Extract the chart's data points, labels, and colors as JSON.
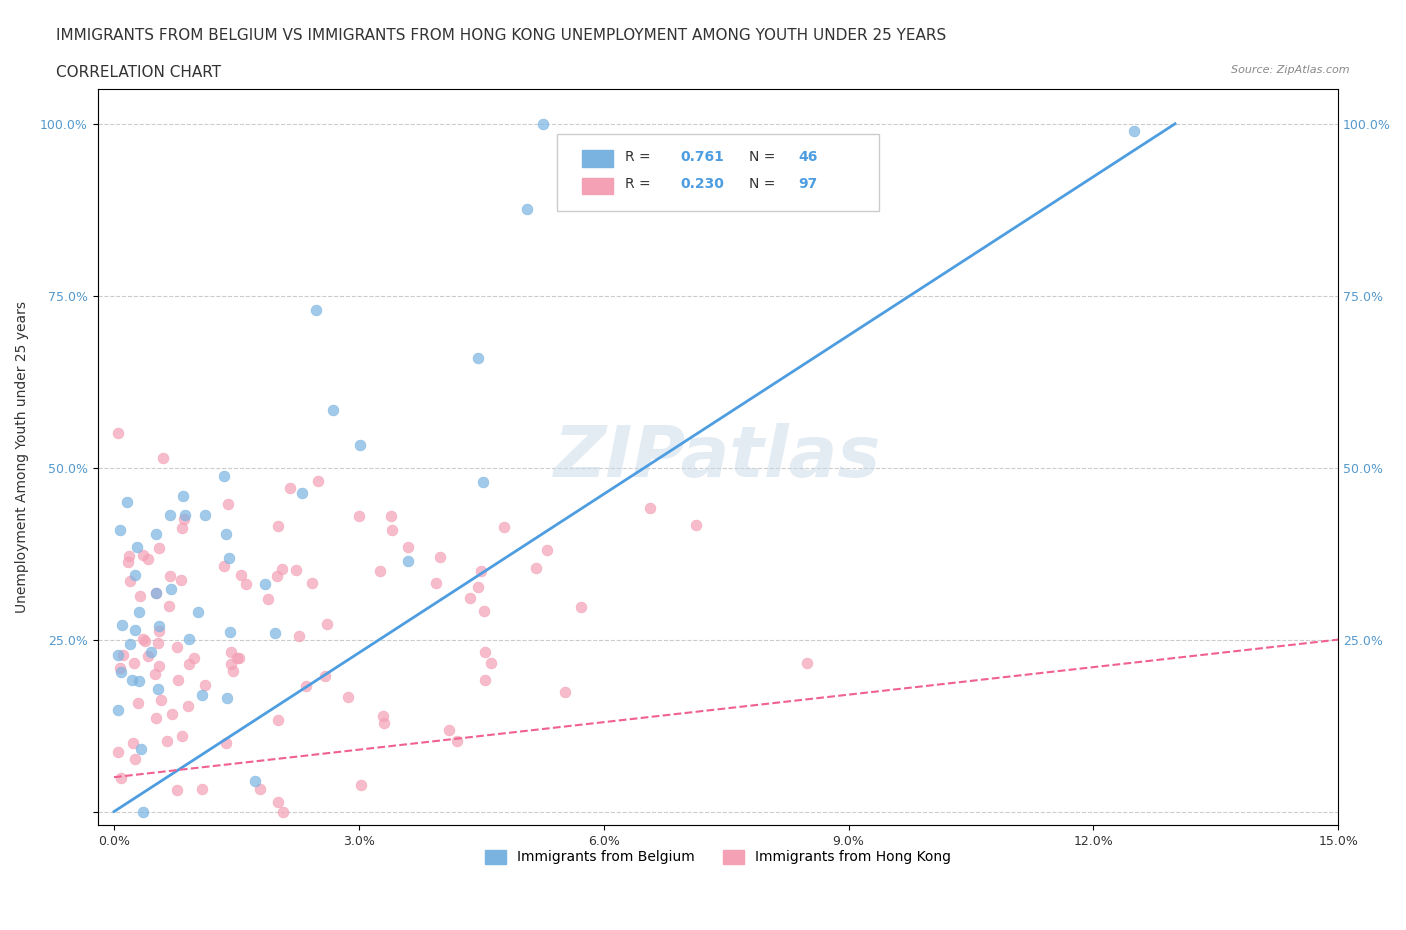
{
  "title_line1": "IMMIGRANTS FROM BELGIUM VS IMMIGRANTS FROM HONG KONG UNEMPLOYMENT AMONG YOUTH UNDER 25 YEARS",
  "title_line2": "CORRELATION CHART",
  "source_text": "Source: ZipAtlas.com",
  "xlabel": "",
  "ylabel": "Unemployment Among Youth under 25 years",
  "xlim": [
    0.0,
    0.15
  ],
  "ylim": [
    0.0,
    1.05
  ],
  "xticks": [
    0.0,
    0.03,
    0.06,
    0.09,
    0.12,
    0.15
  ],
  "xticklabels": [
    "0.0%",
    "3.0%",
    "6.0%",
    "9.0%",
    "12.0%",
    "15.0%"
  ],
  "yticks": [
    0.0,
    0.25,
    0.5,
    0.75,
    1.0
  ],
  "yticklabels": [
    "",
    "25.0%",
    "50.0%",
    "75.0%",
    "100.0%"
  ],
  "legend_labels": [
    "Immigrants from Belgium",
    "Immigrants from Hong Kong"
  ],
  "r_belgium": 0.761,
  "n_belgium": 46,
  "r_hongkong": 0.23,
  "n_hongkong": 97,
  "color_belgium": "#7ab3e0",
  "color_hongkong": "#f4a0b5",
  "color_trendline_belgium": "#4d9de0",
  "color_trendline_hongkong": "#f06090",
  "watermark": "ZIPatlas",
  "background_color": "#ffffff",
  "seed": 42,
  "title_fontsize": 11,
  "subtitle_fontsize": 11,
  "axis_label_fontsize": 10,
  "tick_fontsize": 9
}
